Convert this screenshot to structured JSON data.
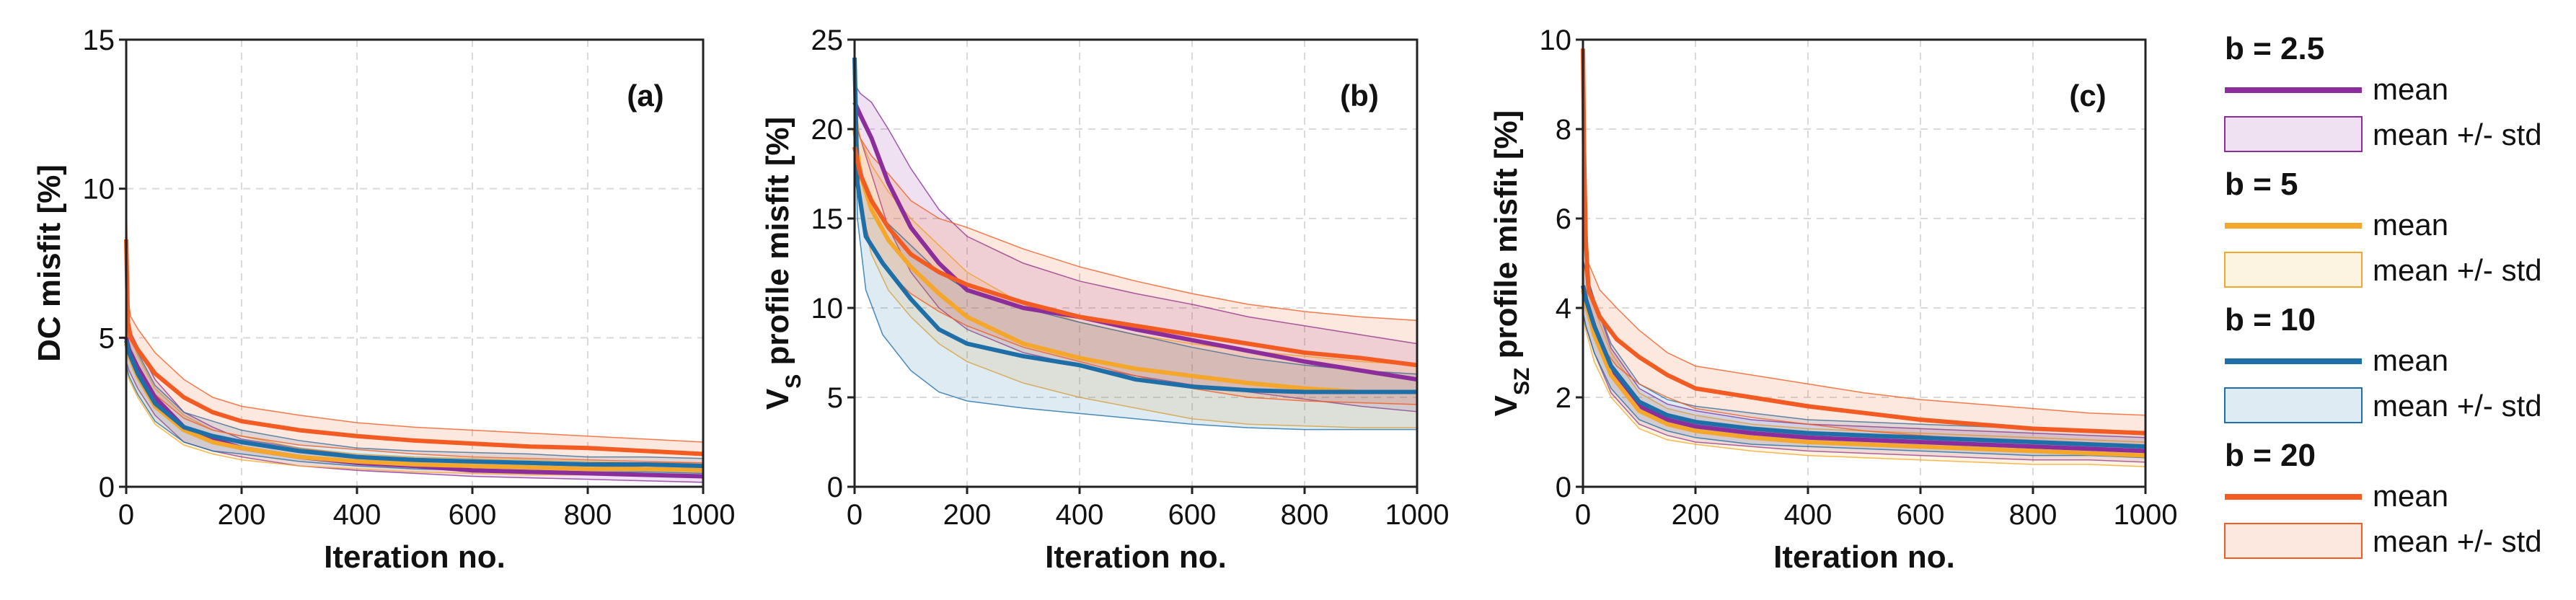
{
  "colors": {
    "b2_5": "#8B2E9C",
    "b5": "#F4A72A",
    "b10": "#1E6FA8",
    "b20": "#F25B21"
  },
  "chart_data": [
    {
      "type": "line",
      "panel_label": "(a)",
      "ylabel": "DC misfit [%]",
      "xlabel": "Iteration no.",
      "xlim": [
        0,
        1000
      ],
      "ylim": [
        0,
        15
      ],
      "xticks": [
        0,
        200,
        400,
        600,
        800,
        1000
      ],
      "yticks": [
        0,
        5,
        10,
        15
      ],
      "grid": true,
      "series": [
        {
          "name": "b = 2.5",
          "color": "#8B2E9C",
          "x": [
            0,
            5,
            20,
            50,
            100,
            150,
            200,
            300,
            400,
            500,
            600,
            700,
            800,
            900,
            1000
          ],
          "mean": [
            5.0,
            4.6,
            4.0,
            3.0,
            2.0,
            1.6,
            1.3,
            1.0,
            0.8,
            0.7,
            0.55,
            0.5,
            0.45,
            0.4,
            0.35
          ],
          "lower": [
            4.2,
            3.9,
            3.3,
            2.4,
            1.5,
            1.2,
            1.0,
            0.7,
            0.55,
            0.45,
            0.35,
            0.3,
            0.25,
            0.2,
            0.15
          ],
          "upper": [
            5.8,
            5.3,
            4.7,
            3.6,
            2.5,
            2.0,
            1.6,
            1.3,
            1.05,
            0.95,
            0.8,
            0.75,
            0.7,
            0.65,
            0.6
          ]
        },
        {
          "name": "b = 5",
          "color": "#F4A72A",
          "x": [
            0,
            5,
            20,
            50,
            100,
            150,
            200,
            300,
            400,
            500,
            600,
            700,
            800,
            900,
            1000
          ],
          "mean": [
            4.8,
            4.4,
            3.7,
            2.7,
            1.9,
            1.5,
            1.3,
            1.0,
            0.85,
            0.75,
            0.7,
            0.65,
            0.6,
            0.6,
            0.55
          ],
          "lower": [
            4.0,
            3.6,
            3.0,
            2.1,
            1.4,
            1.1,
            0.9,
            0.7,
            0.6,
            0.5,
            0.45,
            0.4,
            0.4,
            0.4,
            0.35
          ],
          "upper": [
            5.6,
            5.2,
            4.4,
            3.3,
            2.4,
            1.9,
            1.7,
            1.3,
            1.1,
            1.0,
            0.95,
            0.9,
            0.85,
            0.8,
            0.8
          ]
        },
        {
          "name": "b = 10",
          "color": "#1E6FA8",
          "x": [
            0,
            5,
            20,
            50,
            100,
            150,
            200,
            300,
            400,
            500,
            600,
            700,
            800,
            900,
            1000
          ],
          "mean": [
            4.9,
            4.5,
            3.8,
            2.8,
            2.0,
            1.7,
            1.5,
            1.2,
            1.0,
            0.9,
            0.85,
            0.8,
            0.75,
            0.75,
            0.7
          ],
          "lower": [
            4.1,
            3.7,
            3.1,
            2.2,
            1.5,
            1.2,
            1.1,
            0.85,
            0.7,
            0.6,
            0.55,
            0.5,
            0.5,
            0.5,
            0.45
          ],
          "upper": [
            5.7,
            5.3,
            4.5,
            3.4,
            2.5,
            2.2,
            1.9,
            1.55,
            1.3,
            1.2,
            1.15,
            1.1,
            1.0,
            1.0,
            0.95
          ]
        },
        {
          "name": "b = 20",
          "color": "#F25B21",
          "x": [
            0,
            3,
            8,
            20,
            50,
            100,
            150,
            200,
            300,
            400,
            500,
            600,
            700,
            800,
            900,
            1000
          ],
          "mean": [
            8.3,
            5.5,
            5.0,
            4.6,
            3.8,
            3.0,
            2.5,
            2.2,
            1.9,
            1.7,
            1.55,
            1.45,
            1.35,
            1.3,
            1.2,
            1.1
          ],
          "lower": [
            6.5,
            4.8,
            4.3,
            3.8,
            3.1,
            2.3,
            1.9,
            1.7,
            1.4,
            1.25,
            1.1,
            1.0,
            0.95,
            0.9,
            0.85,
            0.8
          ],
          "upper": [
            10.2,
            6.3,
            5.7,
            5.3,
            4.5,
            3.6,
            3.0,
            2.7,
            2.4,
            2.15,
            2.0,
            1.9,
            1.8,
            1.7,
            1.6,
            1.5
          ]
        }
      ]
    },
    {
      "type": "line",
      "panel_label": "(b)",
      "ylabel": "VS profile misfit [%]",
      "xlabel": "Iteration no.",
      "xlim": [
        0,
        1000
      ],
      "ylim": [
        0,
        25
      ],
      "xticks": [
        0,
        200,
        400,
        600,
        800,
        1000
      ],
      "yticks": [
        0,
        5,
        10,
        15,
        20,
        25
      ],
      "grid": true,
      "series": [
        {
          "name": "b = 2.5",
          "color": "#8B2E9C",
          "x": [
            0,
            10,
            30,
            60,
            100,
            150,
            200,
            300,
            400,
            500,
            600,
            700,
            800,
            900,
            1000
          ],
          "mean": [
            21.5,
            20.8,
            19.5,
            17.0,
            14.5,
            12.5,
            11.0,
            10.0,
            9.5,
            8.8,
            8.2,
            7.6,
            7.0,
            6.5,
            6.0
          ],
          "lower": [
            20.5,
            19.5,
            17.5,
            14.5,
            12.0,
            10.0,
            8.8,
            7.5,
            6.8,
            6.2,
            5.7,
            5.3,
            4.9,
            4.5,
            4.2
          ],
          "upper": [
            22.5,
            22.0,
            21.5,
            20.0,
            17.8,
            15.5,
            14.0,
            12.5,
            11.5,
            10.8,
            10.2,
            9.5,
            9.0,
            8.5,
            8.0
          ]
        },
        {
          "name": "b = 5",
          "color": "#F4A72A",
          "x": [
            0,
            10,
            30,
            60,
            100,
            150,
            200,
            300,
            400,
            500,
            600,
            700,
            800,
            900,
            1000
          ],
          "mean": [
            20.0,
            17.5,
            15.5,
            13.8,
            12.3,
            10.8,
            9.5,
            8.0,
            7.2,
            6.6,
            6.2,
            5.8,
            5.5,
            5.3,
            5.3
          ],
          "lower": [
            18.5,
            15.5,
            13.0,
            11.0,
            9.5,
            8.0,
            7.0,
            5.8,
            5.0,
            4.4,
            3.8,
            3.5,
            3.4,
            3.3,
            3.3
          ],
          "upper": [
            21.5,
            19.5,
            18.0,
            16.5,
            15.0,
            13.5,
            12.0,
            10.2,
            9.2,
            8.5,
            8.0,
            7.6,
            7.3,
            7.0,
            6.8
          ]
        },
        {
          "name": "b = 10",
          "color": "#1E6FA8",
          "x": [
            0,
            5,
            20,
            50,
            100,
            150,
            200,
            300,
            400,
            500,
            600,
            700,
            800,
            900,
            1000
          ],
          "mean": [
            24.0,
            17.0,
            14.0,
            12.5,
            10.5,
            8.8,
            8.0,
            7.3,
            6.8,
            6.0,
            5.6,
            5.4,
            5.3,
            5.3,
            5.3
          ],
          "lower": [
            23.0,
            15.0,
            11.0,
            8.5,
            6.5,
            5.3,
            4.8,
            4.4,
            4.1,
            3.8,
            3.5,
            3.3,
            3.2,
            3.2,
            3.2
          ],
          "upper": [
            25.0,
            19.0,
            16.5,
            15.0,
            13.5,
            12.0,
            11.0,
            10.0,
            9.2,
            8.5,
            7.8,
            7.2,
            6.8,
            6.5,
            6.3
          ]
        },
        {
          "name": "b = 20",
          "color": "#F25B21",
          "x": [
            0,
            10,
            30,
            60,
            100,
            150,
            200,
            300,
            400,
            500,
            600,
            700,
            800,
            900,
            1000
          ],
          "mean": [
            19.0,
            17.5,
            16.0,
            14.5,
            13.0,
            12.0,
            11.3,
            10.3,
            9.5,
            9.0,
            8.5,
            8.0,
            7.5,
            7.2,
            6.8
          ],
          "lower": [
            17.5,
            15.5,
            13.5,
            12.0,
            10.8,
            9.8,
            9.0,
            7.8,
            7.0,
            6.2,
            5.5,
            5.0,
            4.8,
            4.7,
            4.6
          ],
          "upper": [
            20.5,
            19.5,
            18.5,
            17.5,
            16.0,
            15.0,
            14.5,
            13.3,
            12.3,
            11.5,
            10.8,
            10.2,
            9.8,
            9.5,
            9.3
          ]
        }
      ]
    },
    {
      "type": "line",
      "panel_label": "(c)",
      "ylabel": "VSZ profile misfit [%]",
      "xlabel": "Iteration no.",
      "xlim": [
        0,
        1000
      ],
      "ylim": [
        0,
        10
      ],
      "xticks": [
        0,
        200,
        400,
        600,
        800,
        1000
      ],
      "yticks": [
        0,
        2,
        4,
        6,
        8,
        10
      ],
      "grid": true,
      "series": [
        {
          "name": "b = 2.5",
          "color": "#8B2E9C",
          "x": [
            0,
            5,
            20,
            50,
            100,
            150,
            200,
            300,
            400,
            500,
            600,
            700,
            800,
            900,
            1000
          ],
          "mean": [
            4.5,
            4.2,
            3.6,
            2.6,
            1.8,
            1.5,
            1.35,
            1.2,
            1.1,
            1.05,
            1.0,
            0.95,
            0.9,
            0.85,
            0.8
          ],
          "lower": [
            3.9,
            3.6,
            3.0,
            2.1,
            1.4,
            1.15,
            1.0,
            0.9,
            0.8,
            0.75,
            0.7,
            0.65,
            0.6,
            0.6,
            0.55
          ],
          "upper": [
            5.1,
            4.8,
            4.2,
            3.1,
            2.2,
            1.85,
            1.7,
            1.5,
            1.4,
            1.35,
            1.3,
            1.25,
            1.2,
            1.15,
            1.1
          ]
        },
        {
          "name": "b = 5",
          "color": "#F4A72A",
          "x": [
            0,
            5,
            20,
            50,
            100,
            150,
            200,
            300,
            400,
            500,
            600,
            700,
            800,
            900,
            1000
          ],
          "mean": [
            4.4,
            4.1,
            3.4,
            2.5,
            1.7,
            1.4,
            1.25,
            1.1,
            1.0,
            0.95,
            0.9,
            0.85,
            0.8,
            0.75,
            0.7
          ],
          "lower": [
            3.8,
            3.5,
            2.8,
            2.0,
            1.3,
            1.05,
            0.95,
            0.8,
            0.7,
            0.65,
            0.6,
            0.55,
            0.5,
            0.5,
            0.45
          ],
          "upper": [
            5.0,
            4.7,
            4.0,
            3.0,
            2.1,
            1.75,
            1.6,
            1.4,
            1.3,
            1.25,
            1.2,
            1.15,
            1.1,
            1.05,
            1.0
          ]
        },
        {
          "name": "b = 10",
          "color": "#1E6FA8",
          "x": [
            0,
            5,
            20,
            50,
            100,
            150,
            200,
            300,
            400,
            500,
            600,
            700,
            800,
            900,
            1000
          ],
          "mean": [
            4.5,
            4.2,
            3.6,
            2.7,
            1.9,
            1.6,
            1.45,
            1.3,
            1.2,
            1.15,
            1.1,
            1.05,
            1.0,
            0.95,
            0.9
          ],
          "lower": [
            3.9,
            3.6,
            3.0,
            2.2,
            1.5,
            1.25,
            1.1,
            0.95,
            0.9,
            0.85,
            0.8,
            0.75,
            0.7,
            0.7,
            0.65
          ],
          "upper": [
            5.1,
            4.8,
            4.2,
            3.2,
            2.3,
            1.95,
            1.8,
            1.65,
            1.5,
            1.45,
            1.4,
            1.35,
            1.3,
            1.25,
            1.2
          ]
        },
        {
          "name": "b = 20",
          "color": "#F25B21",
          "x": [
            0,
            2,
            5,
            10,
            30,
            60,
            100,
            150,
            200,
            300,
            400,
            500,
            600,
            700,
            800,
            900,
            1000
          ],
          "mean": [
            9.8,
            7.5,
            5.5,
            4.4,
            3.8,
            3.3,
            2.9,
            2.5,
            2.2,
            2.0,
            1.8,
            1.65,
            1.5,
            1.4,
            1.3,
            1.25,
            1.2
          ],
          "lower": [
            9.0,
            6.5,
            4.8,
            3.8,
            3.2,
            2.7,
            2.3,
            2.0,
            1.75,
            1.55,
            1.4,
            1.25,
            1.15,
            1.05,
            1.0,
            0.95,
            0.9
          ],
          "upper": [
            10.0,
            8.5,
            6.2,
            5.0,
            4.4,
            4.0,
            3.5,
            3.0,
            2.7,
            2.5,
            2.3,
            2.1,
            1.95,
            1.85,
            1.75,
            1.65,
            1.6
          ]
        }
      ]
    }
  ],
  "legend": {
    "groups": [
      {
        "title": "b = 2.5",
        "color": "#8B2E9C",
        "line_label": "mean",
        "band_label": "mean +/- std"
      },
      {
        "title": "b = 5",
        "color": "#F4A72A",
        "line_label": "mean",
        "band_label": "mean +/- std"
      },
      {
        "title": "b = 10",
        "color": "#1E6FA8",
        "line_label": "mean",
        "band_label": "mean +/- std"
      },
      {
        "title": "b = 20",
        "color": "#F25B21",
        "line_label": "mean",
        "band_label": "mean +/- std"
      }
    ]
  }
}
